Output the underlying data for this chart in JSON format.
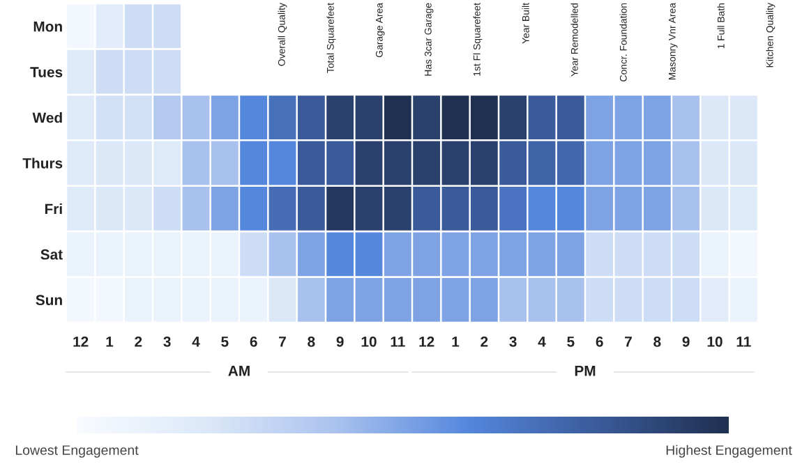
{
  "chart_data": {
    "type": "heatmap",
    "categories": [
      "12",
      "1",
      "2",
      "3",
      "4",
      "5",
      "6",
      "7",
      "8",
      "9",
      "10",
      "11",
      "12",
      "1",
      "2",
      "3",
      "4",
      "5",
      "6",
      "7",
      "8",
      "9",
      "10",
      "11"
    ],
    "y_categories": [
      "Mon",
      "Tues",
      "Wed",
      "Thurs",
      "Fri",
      "Sat",
      "Sun"
    ],
    "cells": [
      [
        0.2,
        0.8,
        1.3,
        1.3,
        null,
        null,
        null,
        null,
        null,
        null,
        null,
        null,
        null,
        null,
        null,
        null,
        null,
        null,
        null,
        null,
        null,
        null,
        null,
        null
      ],
      [
        0.9,
        1.3,
        1.3,
        1.3,
        null,
        null,
        null,
        null,
        null,
        null,
        null,
        null,
        null,
        null,
        null,
        null,
        null,
        null,
        null,
        null,
        null,
        null,
        null,
        null
      ],
      [
        0.9,
        1.2,
        1.2,
        1.8,
        2,
        2.5,
        3,
        3.5,
        4,
        4.6,
        4.6,
        5,
        4.6,
        5,
        5,
        4.6,
        4,
        4,
        2.5,
        2.5,
        2.5,
        2,
        1,
        1
      ],
      [
        0.9,
        1,
        1,
        0.9,
        2,
        2,
        3,
        3,
        4,
        4,
        4.6,
        4.6,
        4.6,
        4.6,
        4.6,
        4,
        3.8,
        3.7,
        2.5,
        2.5,
        2.5,
        2,
        1,
        1
      ],
      [
        0.9,
        1,
        1,
        1.3,
        2,
        2.5,
        3,
        3.6,
        4,
        4.8,
        4.6,
        4.6,
        4,
        4,
        4,
        3.4,
        3,
        3,
        2.5,
        2.5,
        2.5,
        2,
        1,
        0.9
      ],
      [
        0.5,
        0.5,
        0.5,
        0.5,
        0.5,
        0.5,
        1.3,
        2,
        2.5,
        3,
        3,
        2.5,
        2.5,
        2.5,
        2.5,
        2.5,
        2.5,
        2.5,
        1.3,
        1.3,
        1.3,
        1.3,
        0.5,
        0.2
      ],
      [
        0.2,
        0.2,
        0.5,
        0.5,
        0.5,
        0.5,
        0.5,
        1,
        2,
        2.5,
        2.5,
        2.5,
        2.5,
        2.5,
        2.5,
        2,
        2,
        2,
        1.3,
        1.3,
        1.3,
        1.3,
        0.8,
        0.5
      ]
    ],
    "colors": [
      "#f8fbff",
      "#dce8f8",
      "#a9c1ee",
      "#5587dd",
      "#3a5a9a",
      "#1f3050"
    ],
    "clim": [
      0,
      5
    ],
    "cticks": [
      {
        "value": 0,
        "label": "Lowest Engagement"
      },
      {
        "value": 5,
        "label": "Highest Engagement"
      }
    ],
    "annotations": [
      "AM",
      "PM",
      "Overall Quality",
      "Total Squarefeet",
      "Garage Area",
      "Has 3car Garage",
      "1st Fl Squarefeet",
      "Year Built",
      "Year Remodelled",
      "Concr. Foundation",
      "Masonry Vnr Area",
      "1 Full Bath",
      "Kitchen Quality"
    ]
  }
}
